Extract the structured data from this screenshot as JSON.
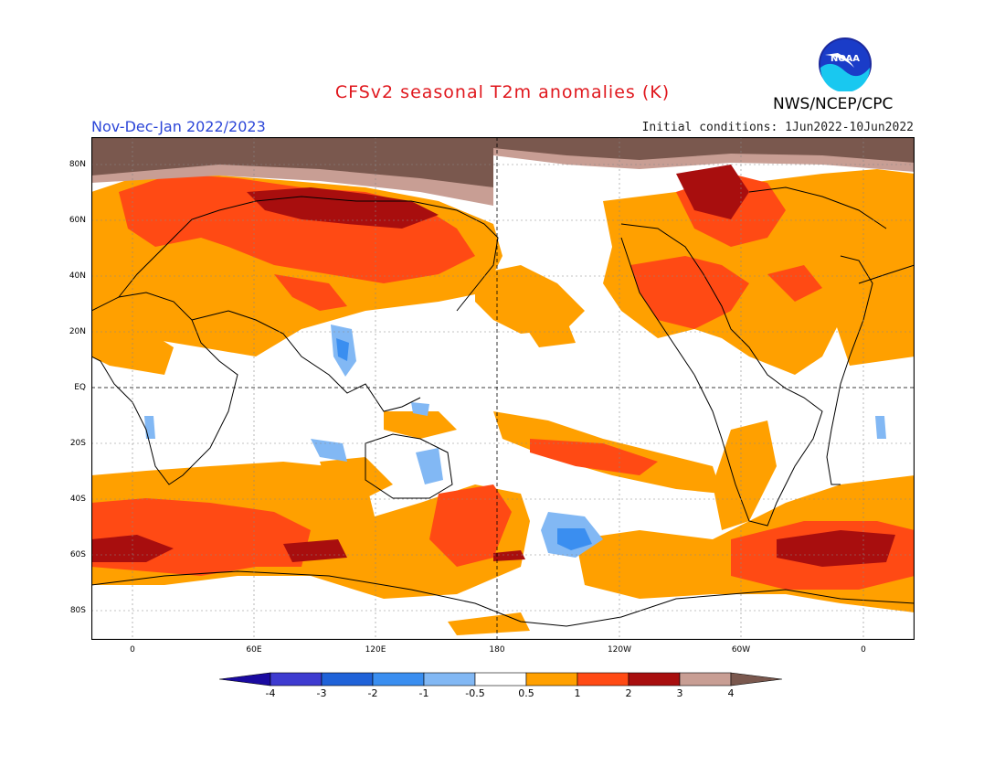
{
  "header": {
    "title": "CFSv2 seasonal T2m anomalies (K)",
    "agency": "NWS/NCEP/CPC",
    "logo_text": "NOAA",
    "season": "Nov-Dec-Jan 2022/2023",
    "initial_conditions": "Initial conditions: 1Jun2022-10Jun2022"
  },
  "axes": {
    "lat_labels": [
      "80N",
      "60N",
      "40N",
      "20N",
      "EQ",
      "20S",
      "40S",
      "60S",
      "80S"
    ],
    "lon_labels": [
      "0",
      "60E",
      "120E",
      "180",
      "120W",
      "60W",
      "0"
    ]
  },
  "colorbar": {
    "labels": [
      "-4",
      "-3",
      "-2",
      "-1",
      "-0.5",
      "0.5",
      "1",
      "2",
      "3",
      "4"
    ],
    "colors": [
      "#1a0aa0",
      "#3e3bd0",
      "#1f62d8",
      "#3a8ef0",
      "#82b8f4",
      "#ffffff",
      "#ffa000",
      "#ff4a14",
      "#a80e0e",
      "#c89e94",
      "#7a584e"
    ]
  },
  "colors": {
    "title": "#e0181e",
    "season": "#2c46d8",
    "warm_0_5_1": "#ffa000",
    "warm_1_2": "#ff4a14",
    "warm_2_3": "#a80e0e",
    "warm_3_4": "#c89e94",
    "warm_gt4": "#7a584e",
    "cool_0_5_1": "#82b8f4",
    "cool_1_2": "#3a8ef0"
  }
}
